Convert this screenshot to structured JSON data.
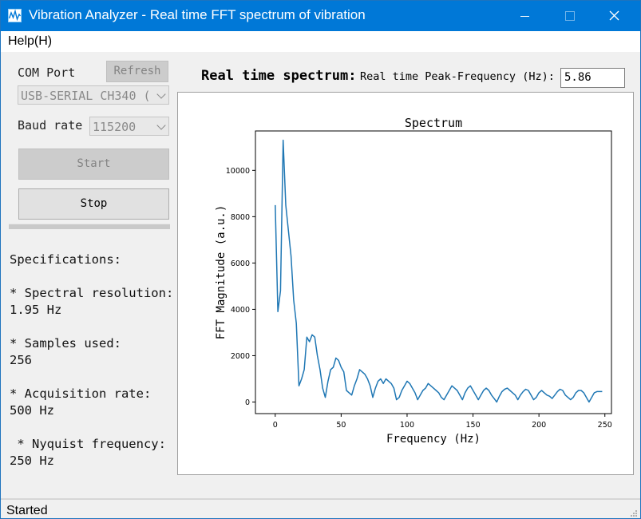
{
  "window": {
    "title": "Vibration Analyzer - Real time FFT spectrum of vibration",
    "accent": "#0078d7"
  },
  "menu": {
    "help": "Help(H)"
  },
  "left": {
    "com_port_label": "COM Port",
    "refresh_label": "Refresh",
    "com_port_value": "USB-SERIAL CH340 (",
    "baud_rate_label": "Baud rate",
    "baud_rate_value": "115200",
    "start_label": "Start",
    "stop_label": "Stop",
    "progress_fraction": 0.0
  },
  "specs": {
    "heading": "Specifications:",
    "resolution_label": "* Spectral resolution:",
    "resolution_value": "1.95 Hz",
    "samples_label": "* Samples used:",
    "samples_value": "256",
    "rate_label": "* Acquisition rate:",
    "rate_value": "500 Hz",
    "nyquist_label": " * Nyquist frequency:",
    "nyquist_value": "250 Hz"
  },
  "main": {
    "heading": "Real time spectrum:",
    "peak_label": "Real time Peak-Frequency (Hz):",
    "peak_value": "5.86"
  },
  "status": {
    "text": "Started"
  },
  "chart_data": {
    "type": "line",
    "title": "Spectrum",
    "xlabel": "Frequency (Hz)",
    "ylabel": "FFT Magnitude (a.u.)",
    "xlim": [
      -15,
      255
    ],
    "ylim": [
      -500,
      11700
    ],
    "xticks": [
      0,
      50,
      100,
      150,
      200,
      250
    ],
    "yticks": [
      0,
      2000,
      4000,
      6000,
      8000,
      10000
    ],
    "line_color": "#1f77b4",
    "series": [
      {
        "x": [
          0,
          2,
          4,
          6,
          8,
          10,
          12,
          14,
          16,
          18,
          20,
          22,
          24,
          26,
          28,
          30,
          32,
          34,
          36,
          38,
          40,
          42,
          44,
          46,
          48,
          50,
          52,
          54,
          56,
          58,
          60,
          62,
          64,
          66,
          68,
          70,
          72,
          74,
          76,
          78,
          80,
          82,
          84,
          86,
          88,
          90,
          92,
          94,
          96,
          98,
          100,
          102,
          104,
          106,
          108,
          110,
          112,
          114,
          116,
          118,
          120,
          122,
          124,
          126,
          128,
          130,
          132,
          134,
          136,
          138,
          140,
          142,
          144,
          146,
          148,
          150,
          152,
          154,
          156,
          158,
          160,
          162,
          164,
          166,
          168,
          170,
          172,
          174,
          176,
          178,
          180,
          182,
          184,
          186,
          188,
          190,
          192,
          194,
          196,
          198,
          200,
          202,
          204,
          206,
          208,
          210,
          212,
          214,
          216,
          218,
          220,
          222,
          224,
          226,
          228,
          230,
          232,
          234,
          236,
          238,
          240,
          242,
          244,
          246,
          248
        ],
        "values": [
          8500,
          3900,
          4800,
          11300,
          8500,
          7400,
          6300,
          4400,
          3400,
          700,
          1000,
          1400,
          2800,
          2600,
          2900,
          2800,
          2000,
          1400,
          600,
          200,
          900,
          1400,
          1500,
          1900,
          1800,
          1500,
          1300,
          500,
          400,
          300,
          700,
          1000,
          1400,
          1300,
          1200,
          1000,
          700,
          200,
          600,
          900,
          1000,
          800,
          1000,
          900,
          800,
          600,
          100,
          200,
          500,
          700,
          900,
          800,
          600,
          400,
          100,
          300,
          500,
          600,
          800,
          700,
          600,
          500,
          400,
          200,
          100,
          300,
          500,
          700,
          600,
          500,
          300,
          100,
          400,
          600,
          700,
          500,
          300,
          100,
          300,
          500,
          600,
          500,
          300,
          150,
          0,
          250,
          450,
          550,
          600,
          500,
          400,
          300,
          100,
          300,
          450,
          550,
          500,
          300,
          100,
          200,
          400,
          500,
          400,
          300,
          250,
          150,
          300,
          450,
          550,
          500,
          300,
          200,
          100,
          200,
          400,
          500,
          500,
          400,
          200,
          0,
          200,
          400,
          450,
          450,
          450
        ]
      }
    ]
  }
}
